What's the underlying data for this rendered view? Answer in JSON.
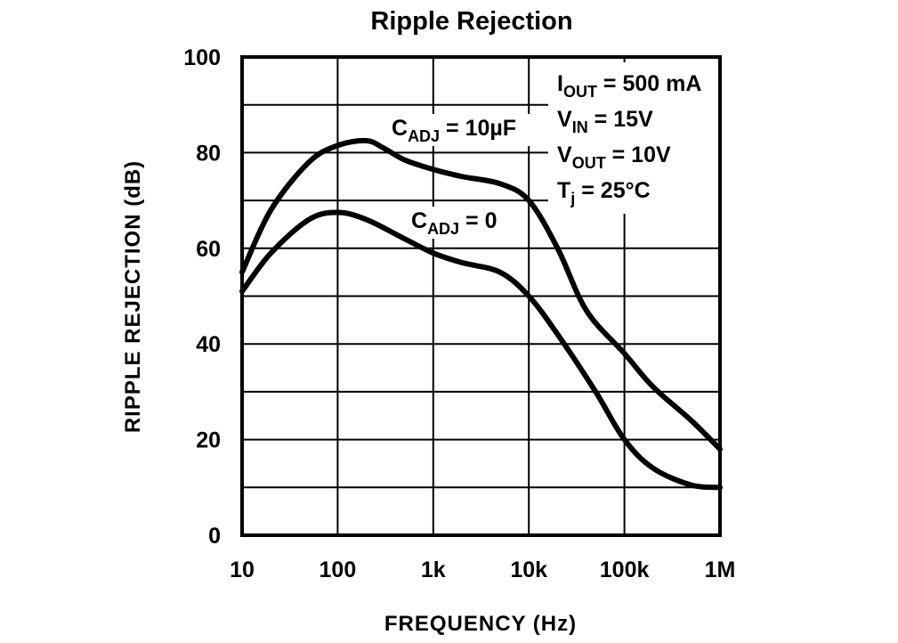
{
  "chart_data": {
    "type": "line",
    "title": "Ripple Rejection",
    "xlabel": "FREQUENCY (Hz)",
    "ylabel": "RIPPLE REJECTION (dB)",
    "xscale": "log",
    "xlim": [
      10,
      1000000
    ],
    "ylim": [
      0,
      100
    ],
    "grid": true,
    "x_tick_labels": [
      "10",
      "100",
      "1k",
      "10k",
      "100k",
      "1M"
    ],
    "x_tick_values": [
      10,
      100,
      1000,
      10000,
      100000,
      1000000
    ],
    "y_tick_labels": [
      "0",
      "20",
      "40",
      "60",
      "80",
      "100"
    ],
    "y_tick_values": [
      0,
      20,
      40,
      60,
      80,
      100
    ],
    "series": [
      {
        "name": "C_ADJ = 10µF",
        "label_main": "C",
        "label_sub": "ADJ",
        "label_rest": " = 10µF",
        "points": [
          [
            10,
            55
          ],
          [
            20,
            68
          ],
          [
            50,
            78
          ],
          [
            100,
            81.5
          ],
          [
            200,
            82.5
          ],
          [
            300,
            81
          ],
          [
            500,
            78.5
          ],
          [
            1000,
            76.5
          ],
          [
            2000,
            75
          ],
          [
            5000,
            73.5
          ],
          [
            10000,
            70
          ],
          [
            20000,
            60
          ],
          [
            40000,
            47
          ],
          [
            100000,
            38
          ],
          [
            200000,
            31
          ],
          [
            500000,
            24
          ],
          [
            1000000,
            18
          ]
        ]
      },
      {
        "name": "C_ADJ = 0",
        "label_main": "C",
        "label_sub": "ADJ",
        "label_rest": " = 0",
        "points": [
          [
            10,
            51
          ],
          [
            20,
            59
          ],
          [
            50,
            66
          ],
          [
            100,
            67.5
          ],
          [
            200,
            66
          ],
          [
            500,
            62
          ],
          [
            1000,
            59
          ],
          [
            2000,
            57
          ],
          [
            5000,
            55
          ],
          [
            10000,
            50
          ],
          [
            20000,
            42
          ],
          [
            50000,
            30
          ],
          [
            100000,
            20
          ],
          [
            200000,
            14
          ],
          [
            500000,
            10.5
          ],
          [
            1000000,
            10
          ]
        ]
      }
    ],
    "conditions": [
      {
        "main": "I",
        "sub": "OUT",
        "rest": " = 500 mA"
      },
      {
        "main": "V",
        "sub": "IN",
        "rest": " = 15V"
      },
      {
        "main": "V",
        "sub": "OUT",
        "rest": " = 10V"
      },
      {
        "main": "T",
        "sub": "j",
        "rest": " = 25°C"
      }
    ]
  }
}
